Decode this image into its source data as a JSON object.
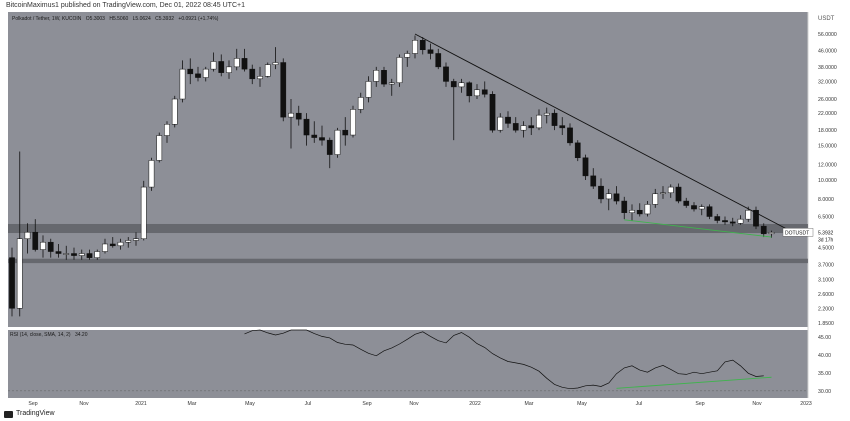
{
  "header_text": "BitcoinMaximus1 published on TradingView.com, Dec 01, 2022 08:45 UTC+1",
  "footer_text": "TradingView",
  "footer_icon": "tradingview-logo-icon",
  "chart_data": {
    "type": "candlestick",
    "symbol_line": {
      "name": "Polkadot / Tether, 1W, KUCOIN",
      "open": "O5.3003",
      "high": "H5.5060",
      "low": "L5.0624",
      "close": "C5.3932",
      "change": "+0.0921 (+1.74%)"
    },
    "currency_label": "USDT",
    "price_scale": "log",
    "y_ticks": [
      "56.0000",
      "46.0000",
      "38.0000",
      "32.0000",
      "26.0000",
      "22.0000",
      "18.0000",
      "15.0000",
      "12.0000",
      "10.0000",
      "8.0000",
      "6.5000",
      "5.3932",
      "4.5000",
      "3.7000",
      "3.1000",
      "2.6000",
      "2.2000",
      "1.8500"
    ],
    "price_tag": {
      "symbol": "DOTUSDT",
      "price": "5.3932",
      "countdown": "3d 17h"
    },
    "x_ticks": [
      "Sep",
      "Nov",
      "2021",
      "Mar",
      "May",
      "Jul",
      "Sep",
      "Nov",
      "2022",
      "Mar",
      "May",
      "Jul",
      "Sep",
      "Nov",
      "2023"
    ],
    "grid": false,
    "candles": [
      [
        4.0,
        4.5,
        2.0,
        2.2
      ],
      [
        2.2,
        14.0,
        2.0,
        5.0
      ],
      [
        5.0,
        6.0,
        4.2,
        5.4
      ],
      [
        5.4,
        6.3,
        4.3,
        4.4
      ],
      [
        4.4,
        5.2,
        4.0,
        4.8
      ],
      [
        4.8,
        5.0,
        4.0,
        4.3
      ],
      [
        4.3,
        4.7,
        4.0,
        4.2
      ],
      [
        4.2,
        4.6,
        3.9,
        4.2
      ],
      [
        4.2,
        4.5,
        3.9,
        4.1
      ],
      [
        4.1,
        4.4,
        3.9,
        4.2
      ],
      [
        4.2,
        4.4,
        3.9,
        4.0
      ],
      [
        4.0,
        4.4,
        3.9,
        4.3
      ],
      [
        4.3,
        5.0,
        4.2,
        4.7
      ],
      [
        4.7,
        5.1,
        4.5,
        4.6
      ],
      [
        4.6,
        5.0,
        4.4,
        4.8
      ],
      [
        4.8,
        5.1,
        4.5,
        4.9
      ],
      [
        4.9,
        5.4,
        4.6,
        5.0
      ],
      [
        5.0,
        9.9,
        4.9,
        9.2
      ],
      [
        9.2,
        13.0,
        8.8,
        12.6
      ],
      [
        12.6,
        17.5,
        12.3,
        16.9
      ],
      [
        16.9,
        20.0,
        15.5,
        19.3
      ],
      [
        19.3,
        27.0,
        18.6,
        26.0
      ],
      [
        26.0,
        41.0,
        25.0,
        37.0
      ],
      [
        37.0,
        42.0,
        31.0,
        35.0
      ],
      [
        35.0,
        38.0,
        32.0,
        33.5
      ],
      [
        33.5,
        38.0,
        32.0,
        37.0
      ],
      [
        37.0,
        45.0,
        36.0,
        40.5
      ],
      [
        40.5,
        44.0,
        34.0,
        35.5
      ],
      [
        35.5,
        41.0,
        33.0,
        38.0
      ],
      [
        38.0,
        47.0,
        36.5,
        42.0
      ],
      [
        42.0,
        47.0,
        36.0,
        37.0
      ],
      [
        37.0,
        39.0,
        31.0,
        33.0
      ],
      [
        33.0,
        38.0,
        30.0,
        34.0
      ],
      [
        34.0,
        40.0,
        33.5,
        39.0
      ],
      [
        39.0,
        48.0,
        37.0,
        40.0
      ],
      [
        40.0,
        42.0,
        20.0,
        21.0
      ],
      [
        21.0,
        26.0,
        14.5,
        22.0
      ],
      [
        22.0,
        24.0,
        19.0,
        20.5
      ],
      [
        20.5,
        22.0,
        15.0,
        17.0
      ],
      [
        17.0,
        20.0,
        15.5,
        16.5
      ],
      [
        16.5,
        19.0,
        15.0,
        16.0
      ],
      [
        16.0,
        16.5,
        11.5,
        13.5
      ],
      [
        13.5,
        18.5,
        13.0,
        18.0
      ],
      [
        18.0,
        21.0,
        15.0,
        17.0
      ],
      [
        17.0,
        24.0,
        16.5,
        23.0
      ],
      [
        23.0,
        28.0,
        22.0,
        26.5
      ],
      [
        26.5,
        34.0,
        25.0,
        32.0
      ],
      [
        32.0,
        38.0,
        30.0,
        36.5
      ],
      [
        36.5,
        38.0,
        30.0,
        31.0
      ],
      [
        31.0,
        33.0,
        27.0,
        31.5
      ],
      [
        31.5,
        44.0,
        30.0,
        42.5
      ],
      [
        42.5,
        46.0,
        38.0,
        44.5
      ],
      [
        44.5,
        55.0,
        42.0,
        52.0
      ],
      [
        52.0,
        54.0,
        44.0,
        46.5
      ],
      [
        46.5,
        50.0,
        41.5,
        44.5
      ],
      [
        44.5,
        47.0,
        37.0,
        38.0
      ],
      [
        38.0,
        40.0,
        30.0,
        32.0
      ],
      [
        32.0,
        33.0,
        16.0,
        30.0
      ],
      [
        30.0,
        33.0,
        28.0,
        31.5
      ],
      [
        31.5,
        32.0,
        25.0,
        27.0
      ],
      [
        27.0,
        31.0,
        26.0,
        29.0
      ],
      [
        29.0,
        32.0,
        26.5,
        27.5
      ],
      [
        27.5,
        28.5,
        17.5,
        18.0
      ],
      [
        18.0,
        22.0,
        17.5,
        21.0
      ],
      [
        21.0,
        22.5,
        18.5,
        19.5
      ],
      [
        19.5,
        21.0,
        17.5,
        18.0
      ],
      [
        18.0,
        20.0,
        16.5,
        19.0
      ],
      [
        19.0,
        21.0,
        17.0,
        18.5
      ],
      [
        18.5,
        23.0,
        18.0,
        21.5
      ],
      [
        21.5,
        23.5,
        19.5,
        22.0
      ],
      [
        22.0,
        23.0,
        18.0,
        19.0
      ],
      [
        19.0,
        21.0,
        17.0,
        18.5
      ],
      [
        18.5,
        19.5,
        15.0,
        15.5
      ],
      [
        15.5,
        16.0,
        12.5,
        13.0
      ],
      [
        13.0,
        13.5,
        10.0,
        10.5
      ],
      [
        10.5,
        11.5,
        9.0,
        9.3
      ],
      [
        9.3,
        10.2,
        7.6,
        8.0
      ],
      [
        8.0,
        9.0,
        7.0,
        8.5
      ],
      [
        8.5,
        9.3,
        7.5,
        7.8
      ],
      [
        7.8,
        8.2,
        6.3,
        6.8
      ],
      [
        6.8,
        7.5,
        6.2,
        7.0
      ],
      [
        7.0,
        7.6,
        6.5,
        6.7
      ],
      [
        6.7,
        7.8,
        6.5,
        7.5
      ],
      [
        7.5,
        9.0,
        7.2,
        8.5
      ],
      [
        8.5,
        9.3,
        8.0,
        8.6
      ],
      [
        8.6,
        9.5,
        8.1,
        9.2
      ],
      [
        9.2,
        9.6,
        7.6,
        7.8
      ],
      [
        7.8,
        8.1,
        7.2,
        7.4
      ],
      [
        7.4,
        7.7,
        6.9,
        7.1
      ],
      [
        7.1,
        7.5,
        6.6,
        7.3
      ],
      [
        7.3,
        7.5,
        6.3,
        6.5
      ],
      [
        6.5,
        6.7,
        6.0,
        6.2
      ],
      [
        6.2,
        6.5,
        5.9,
        6.1
      ],
      [
        6.1,
        6.4,
        5.8,
        6.0
      ],
      [
        6.0,
        6.6,
        5.9,
        6.3
      ],
      [
        6.3,
        7.3,
        6.1,
        7.0
      ],
      [
        7.0,
        7.3,
        5.6,
        5.8
      ],
      [
        5.8,
        6.0,
        5.1,
        5.3
      ],
      [
        5.3,
        5.5,
        5.06,
        5.39
      ]
    ],
    "rsi": {
      "label": "RSI (14, close, SMA, 14, 2)",
      "value": "34.20",
      "y_ticks": [
        "45.00",
        "40.00",
        "35.00",
        "30.00"
      ],
      "series": [
        45.9,
        46.8,
        47.5,
        46.2,
        45.6,
        46.1,
        47.2,
        48.6,
        47.4,
        46.0,
        45.2,
        44.8,
        43.5,
        43.0,
        42.8,
        41.6,
        40.5,
        39.8,
        41.2,
        42.0,
        43.1,
        44.4,
        45.8,
        46.5,
        45.2,
        44.0,
        43.4,
        45.5,
        46.3,
        45.0,
        43.2,
        42.1,
        40.4,
        39.2,
        38.2,
        37.8,
        37.4,
        36.6,
        35.5,
        33.5,
        31.8,
        31.0,
        30.6,
        30.8,
        31.4,
        31.6,
        31.2,
        32.2,
        34.8,
        36.4,
        37.0,
        35.8,
        35.2,
        36.4,
        37.1,
        36.0,
        34.8,
        34.6,
        35.2,
        34.8,
        35.2,
        35.6,
        38.1,
        38.6,
        37.0,
        34.9,
        34.0,
        34.2
      ],
      "series_start_index": 30
    }
  },
  "colors": {
    "chart_bg": "#8d8f97",
    "panel_border": "#ffffff",
    "bull_fill": "#ffffff",
    "bear_fill": "#111111",
    "support_band": "#5c5e64",
    "trendline": "#111111",
    "divergence": "#3fb44d",
    "rsi_line": "#111111",
    "price_tag_bg": "#ffffff"
  }
}
